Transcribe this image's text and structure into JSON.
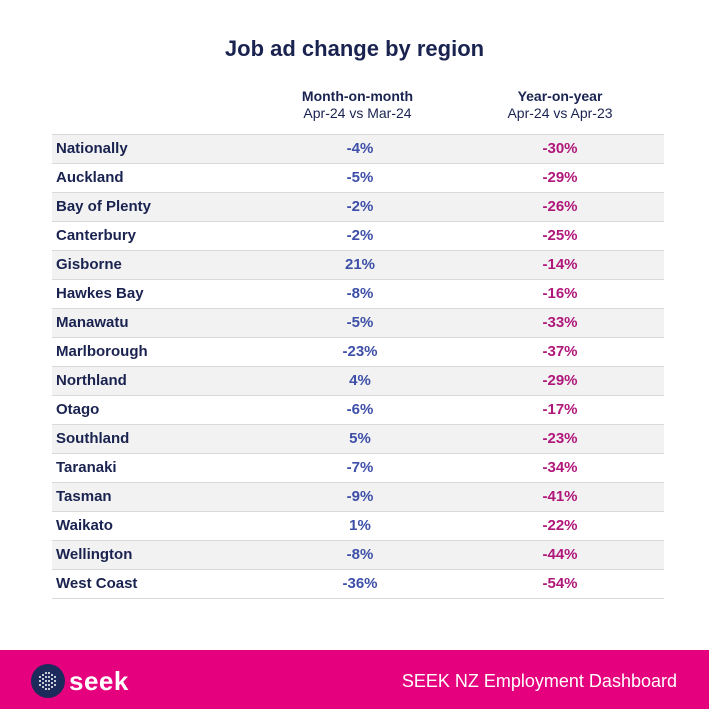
{
  "title": "Job ad change by region",
  "columns": {
    "mom": {
      "label": "Month-on-month",
      "sub": "Apr-24 vs Mar-24"
    },
    "yoy": {
      "label": "Year-on-year",
      "sub": "Apr-24 vs Apr-23"
    }
  },
  "chart_data": {
    "type": "table",
    "title": "Job ad change by region",
    "columns": [
      "Month-on-month Apr-24 vs Mar-24",
      "Year-on-year Apr-24 vs Apr-23"
    ],
    "rows": [
      {
        "region": "Nationally",
        "mom": "-4%",
        "yoy": "-30%"
      },
      {
        "region": "Auckland",
        "mom": "-5%",
        "yoy": "-29%"
      },
      {
        "region": "Bay of Plenty",
        "mom": "-2%",
        "yoy": "-26%"
      },
      {
        "region": "Canterbury",
        "mom": "-2%",
        "yoy": "-25%"
      },
      {
        "region": "Gisborne",
        "mom": "21%",
        "yoy": "-14%"
      },
      {
        "region": "Hawkes Bay",
        "mom": "-8%",
        "yoy": "-16%"
      },
      {
        "region": "Manawatu",
        "mom": "-5%",
        "yoy": "-33%"
      },
      {
        "region": "Marlborough",
        "mom": "-23%",
        "yoy": "-37%"
      },
      {
        "region": "Northland",
        "mom": "4%",
        "yoy": "-29%"
      },
      {
        "region": "Otago",
        "mom": "-6%",
        "yoy": "-17%"
      },
      {
        "region": "Southland",
        "mom": "5%",
        "yoy": "-23%"
      },
      {
        "region": "Taranaki",
        "mom": "-7%",
        "yoy": "-34%"
      },
      {
        "region": "Tasman",
        "mom": "-9%",
        "yoy": "-41%"
      },
      {
        "region": "Waikato",
        "mom": "1%",
        "yoy": "-22%"
      },
      {
        "region": "Wellington",
        "mom": "-8%",
        "yoy": "-44%"
      },
      {
        "region": "West Coast",
        "mom": "-36%",
        "yoy": "-54%"
      }
    ]
  },
  "footer": {
    "brand": "seek",
    "text": "SEEK NZ Employment Dashboard"
  },
  "colors": {
    "navy": "#1a2350",
    "mom": "#3d4fa8",
    "yoy": "#b0177a",
    "footer": "#e5007e"
  }
}
